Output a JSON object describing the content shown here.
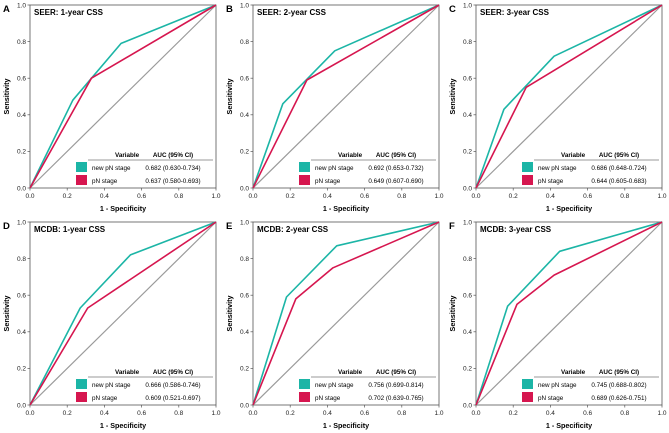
{
  "chart_data": [
    {
      "type": "line",
      "letter": "A",
      "title": "SEER: 1-year CSS",
      "xlabel": "1 - Specificity",
      "ylabel": "Sensitivity",
      "xlim": [
        0,
        1
      ],
      "ylim": [
        0,
        1
      ],
      "ticks": [
        "0.0",
        "0.2",
        "0.4",
        "0.6",
        "0.8",
        "1.0"
      ],
      "table_headers": [
        "Variable",
        "AUC (95% CI)"
      ],
      "series": [
        {
          "name": "new pN stage",
          "auc": "0.682 (0.630-0.734)",
          "color": "#1cb5a6",
          "x": [
            0,
            0.23,
            0.49,
            1
          ],
          "y": [
            0,
            0.48,
            0.79,
            1
          ]
        },
        {
          "name": "pN stage",
          "auc": "0.637 (0.580-0.693)",
          "color": "#d6164f",
          "x": [
            0,
            0.33,
            1
          ],
          "y": [
            0,
            0.6,
            1
          ]
        }
      ]
    },
    {
      "type": "line",
      "letter": "B",
      "title": "SEER: 2-year CSS",
      "xlabel": "1 - Specificity",
      "ylabel": "Sensitivity",
      "xlim": [
        0,
        1
      ],
      "ylim": [
        0,
        1
      ],
      "ticks": [
        "0.0",
        "0.2",
        "0.4",
        "0.6",
        "0.8",
        "1.0"
      ],
      "table_headers": [
        "Variable",
        "AUC (95% CI)"
      ],
      "series": [
        {
          "name": "new pN stage",
          "auc": "0.692 (0.653-0.732)",
          "color": "#1cb5a6",
          "x": [
            0,
            0.16,
            0.44,
            1
          ],
          "y": [
            0,
            0.46,
            0.75,
            1
          ]
        },
        {
          "name": "pN stage",
          "auc": "0.649 (0.607-0.690)",
          "color": "#d6164f",
          "x": [
            0,
            0.29,
            1
          ],
          "y": [
            0,
            0.59,
            1
          ]
        }
      ]
    },
    {
      "type": "line",
      "letter": "C",
      "title": "SEER: 3-year CSS",
      "xlabel": "1 - Specificity",
      "ylabel": "Sensitivity",
      "xlim": [
        0,
        1
      ],
      "ylim": [
        0,
        1
      ],
      "ticks": [
        "0.0",
        "0.2",
        "0.4",
        "0.6",
        "0.8",
        "1.0"
      ],
      "table_headers": [
        "Variable",
        "AUC (95% CI)"
      ],
      "series": [
        {
          "name": "new pN stage",
          "auc": "0.686 (0.648-0.724)",
          "color": "#1cb5a6",
          "x": [
            0,
            0.15,
            0.42,
            1
          ],
          "y": [
            0,
            0.43,
            0.72,
            1
          ]
        },
        {
          "name": "pN stage",
          "auc": "0.644 (0.605-0.683)",
          "color": "#d6164f",
          "x": [
            0,
            0.27,
            1
          ],
          "y": [
            0,
            0.55,
            1
          ]
        }
      ]
    },
    {
      "type": "line",
      "letter": "D",
      "title": "MCDB: 1-year CSS",
      "xlabel": "1 - Specificity",
      "ylabel": "Sensitivity",
      "xlim": [
        0,
        1
      ],
      "ylim": [
        0,
        1
      ],
      "ticks": [
        "0.0",
        "0.2",
        "0.4",
        "0.6",
        "0.8",
        "1.0"
      ],
      "table_headers": [
        "Variable",
        "AUC (95% CI)"
      ],
      "series": [
        {
          "name": "new pN stage",
          "auc": "0.666 (0.586-0.746)",
          "color": "#1cb5a6",
          "x": [
            0,
            0.27,
            0.54,
            1
          ],
          "y": [
            0,
            0.53,
            0.82,
            1
          ]
        },
        {
          "name": "pN stage",
          "auc": "0.609 (0.521-0.697)",
          "color": "#d6164f",
          "x": [
            0,
            0.31,
            1
          ],
          "y": [
            0,
            0.53,
            1
          ]
        }
      ]
    },
    {
      "type": "line",
      "letter": "E",
      "title": "MCDB: 2-year CSS",
      "xlabel": "1 - Specificity",
      "ylabel": "Sensitivity",
      "xlim": [
        0,
        1
      ],
      "ylim": [
        0,
        1
      ],
      "ticks": [
        "0.0",
        "0.2",
        "0.4",
        "0.6",
        "0.8",
        "1.0"
      ],
      "table_headers": [
        "Variable",
        "AUC (95% CI)"
      ],
      "series": [
        {
          "name": "new pN stage",
          "auc": "0.756 (0.699-0.814)",
          "color": "#1cb5a6",
          "x": [
            0,
            0.18,
            0.45,
            1
          ],
          "y": [
            0,
            0.59,
            0.87,
            1
          ]
        },
        {
          "name": "pN stage",
          "auc": "0.702 (0.639-0.765)",
          "color": "#d6164f",
          "x": [
            0,
            0.23,
            0.43,
            1
          ],
          "y": [
            0,
            0.58,
            0.75,
            1
          ]
        }
      ]
    },
    {
      "type": "line",
      "letter": "F",
      "title": "MCDB: 3-year CSS",
      "xlabel": "1 - Specificity",
      "ylabel": "Sensitivity",
      "xlim": [
        0,
        1
      ],
      "ylim": [
        0,
        1
      ],
      "ticks": [
        "0.0",
        "0.2",
        "0.4",
        "0.6",
        "0.8",
        "1.0"
      ],
      "table_headers": [
        "Variable",
        "AUC (95% CI)"
      ],
      "series": [
        {
          "name": "new pN stage",
          "auc": "0.745 (0.688-0.802)",
          "color": "#1cb5a6",
          "x": [
            0,
            0.17,
            0.45,
            1
          ],
          "y": [
            0,
            0.54,
            0.84,
            1
          ]
        },
        {
          "name": "pN stage",
          "auc": "0.689 (0.626-0.751)",
          "color": "#d6164f",
          "x": [
            0,
            0.22,
            0.42,
            1
          ],
          "y": [
            0,
            0.55,
            0.71,
            1
          ]
        }
      ]
    }
  ]
}
